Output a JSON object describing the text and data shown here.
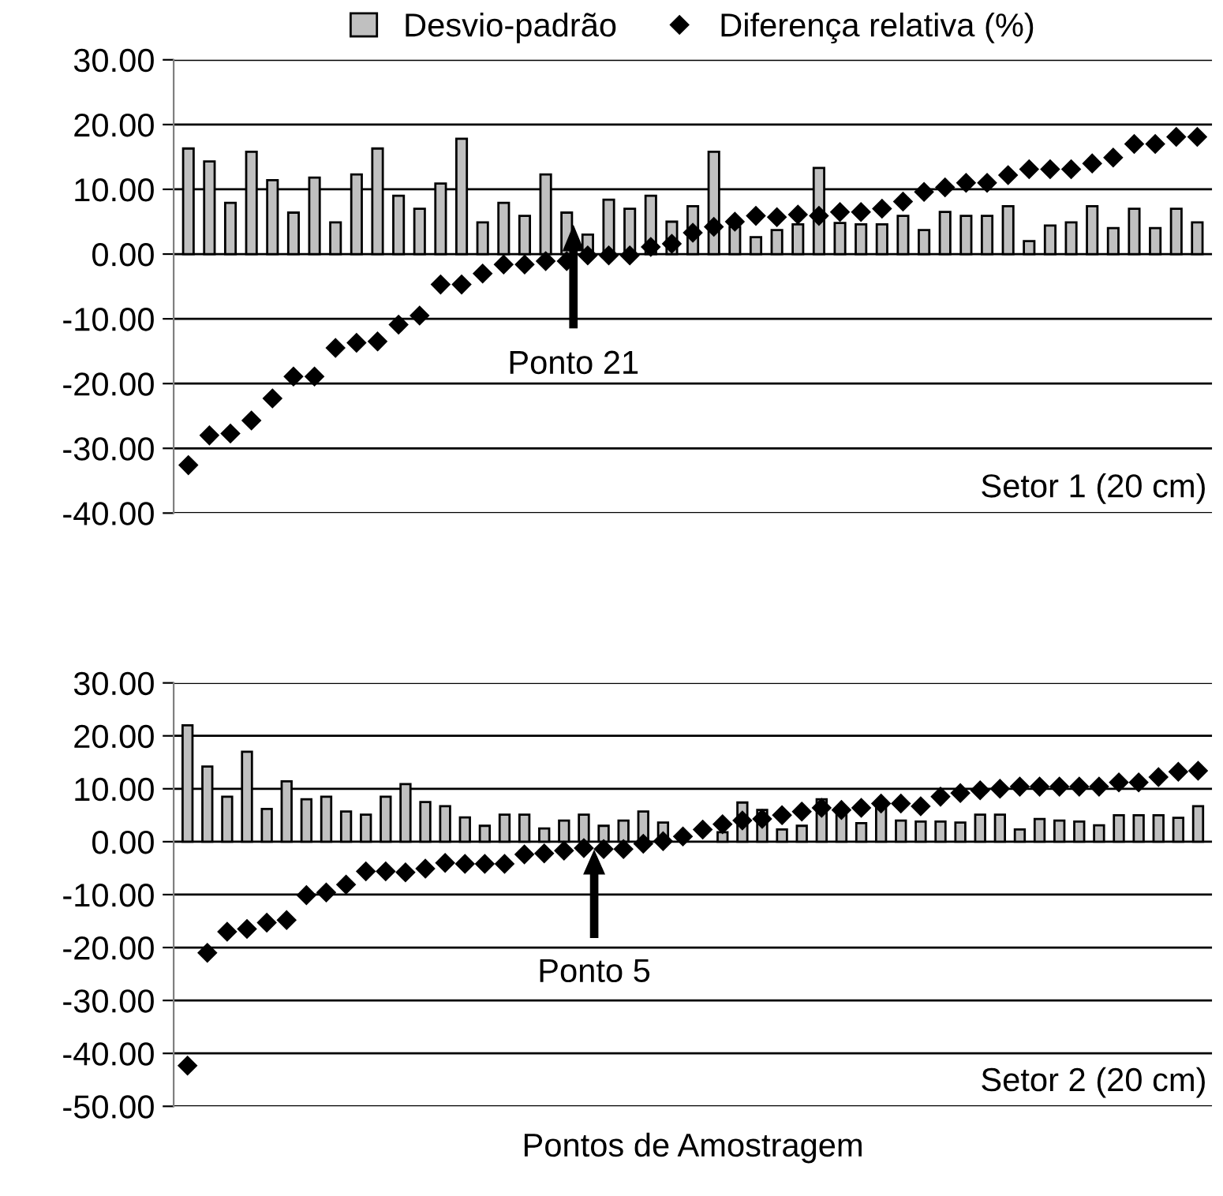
{
  "chart_data": [
    {
      "type": "bar",
      "categories": [
        null,
        null,
        null,
        null,
        null,
        null,
        null,
        null,
        null,
        null,
        null,
        null,
        null,
        null,
        null,
        null,
        null,
        null,
        null,
        null,
        null,
        null,
        null,
        null,
        null,
        null,
        null,
        null,
        null,
        null,
        null,
        null,
        null,
        null,
        null,
        null,
        null,
        null,
        null,
        null,
        null,
        null,
        null,
        null,
        null,
        null,
        null,
        null,
        null
      ],
      "series": [
        {
          "name": "Desvio-padrão",
          "color": "#c0c0c0",
          "values": [
            16.3,
            14.3,
            7.9,
            15.8,
            11.4,
            6.4,
            11.8,
            4.9,
            12.3,
            16.3,
            9.0,
            7.0,
            10.9,
            17.8,
            4.9,
            7.9,
            5.9,
            12.3,
            6.4,
            3.0,
            8.4,
            7.0,
            9.0,
            5.0,
            7.4,
            15.8,
            4.2,
            2.6,
            3.7,
            4.6,
            13.3,
            4.8,
            4.6,
            4.6,
            5.9,
            3.7,
            6.5,
            5.9,
            5.9,
            7.4,
            2.0,
            4.4,
            4.9,
            7.4,
            4.0,
            7.0,
            4.0,
            7.0,
            4.9
          ]
        },
        {
          "name": "Diferença relativa (%)",
          "type": "scatter",
          "color": "#000000",
          "marker": "diamond",
          "values": [
            -32.6,
            -28.0,
            -27.7,
            -25.7,
            -22.3,
            -18.9,
            -18.9,
            -14.5,
            -13.7,
            -13.5,
            -10.9,
            -9.5,
            -4.7,
            -4.7,
            -3.0,
            -1.6,
            -1.6,
            -1.1,
            -1.1,
            -0.2,
            -0.2,
            -0.2,
            1.1,
            1.6,
            3.3,
            4.2,
            5.0,
            5.9,
            5.7,
            6.1,
            5.9,
            6.5,
            6.5,
            7.0,
            8.1,
            9.6,
            10.3,
            11.0,
            11.0,
            12.2,
            13.1,
            13.1,
            13.1,
            14.0,
            14.9,
            17.0,
            17.0,
            18.1,
            18.1
          ]
        }
      ],
      "ylim": [
        -40,
        30
      ],
      "yticks": [
        {
          "value": -40,
          "label": "-40.00"
        },
        {
          "value": -30,
          "label": "-30.00"
        },
        {
          "value": -20,
          "label": "-20.00"
        },
        {
          "value": -10,
          "label": "-10.00"
        },
        {
          "value": 0,
          "label": "0.00"
        },
        {
          "value": 10,
          "label": "10.00"
        },
        {
          "value": 20,
          "label": "20.00"
        },
        {
          "value": 30,
          "label": "30.00"
        }
      ],
      "grid": "y",
      "legend": "top",
      "tick_labels": "y",
      "annotations": [
        "Ponto 21",
        "Setor 1 (20 cm)"
      ]
    },
    {
      "type": "bar",
      "categories": [
        null,
        null,
        null,
        null,
        null,
        null,
        null,
        null,
        null,
        null,
        null,
        null,
        null,
        null,
        null,
        null,
        null,
        null,
        null,
        null,
        null,
        null,
        null,
        null,
        null,
        null,
        null,
        null,
        null,
        null,
        null,
        null,
        null,
        null,
        null,
        null,
        null,
        null,
        null,
        null,
        null,
        null,
        null,
        null,
        null,
        null,
        null,
        null,
        null,
        null,
        null,
        null
      ],
      "series": [
        {
          "color": "#c0c0c0",
          "values": [
            22.0,
            14.2,
            8.5,
            17.0,
            6.2,
            11.4,
            8.0,
            8.5,
            5.7,
            5.1,
            8.5,
            10.9,
            7.5,
            6.7,
            4.6,
            3.0,
            5.1,
            5.1,
            2.5,
            4.0,
            5.1,
            3.0,
            4.0,
            5.7,
            3.6,
            null,
            null,
            1.8,
            7.4,
            6.0,
            2.3,
            3.0,
            8.0,
            5.7,
            3.5,
            7.7,
            4.0,
            3.8,
            3.8,
            3.6,
            5.1,
            5.1,
            2.3,
            4.3,
            4.0,
            3.8,
            3.1,
            5.0,
            5.0,
            5.0,
            4.5,
            6.7
          ]
        },
        {
          "type": "scatter",
          "color": "#000000",
          "marker": "diamond",
          "values": [
            -42.3,
            -21.0,
            -17.0,
            -16.5,
            -15.3,
            -14.8,
            -10.1,
            -9.6,
            -8.1,
            -5.6,
            -5.6,
            -5.8,
            -5.1,
            -4.0,
            -4.2,
            -4.2,
            -4.2,
            -2.4,
            -2.2,
            -1.7,
            -1.2,
            -1.4,
            -1.4,
            -0.4,
            0.1,
            1.0,
            2.3,
            3.3,
            4.0,
            4.3,
            5.0,
            5.7,
            6.4,
            6.0,
            6.4,
            7.2,
            7.2,
            6.7,
            8.5,
            9.2,
            9.7,
            10.0,
            10.4,
            10.4,
            10.4,
            10.4,
            10.4,
            11.2,
            11.2,
            12.2,
            13.2,
            13.4
          ]
        }
      ],
      "ylim": [
        -50,
        30
      ],
      "yticks": [
        {
          "value": -50,
          "label": "-50.00"
        },
        {
          "value": -40,
          "label": "-40.00"
        },
        {
          "value": -30,
          "label": "-30.00"
        },
        {
          "value": -20,
          "label": "-20.00"
        },
        {
          "value": -10,
          "label": "-10.00"
        },
        {
          "value": 0,
          "label": "0.00"
        },
        {
          "value": 10,
          "label": "10.00"
        },
        {
          "value": 20,
          "label": "20.00"
        },
        {
          "value": 30,
          "label": "30.00"
        }
      ],
      "grid": "y",
      "tick_labels": "y",
      "xlabel": "Pontos de Amostragem",
      "annotations": [
        "Ponto 5",
        "Setor 2 (20 cm)"
      ]
    }
  ]
}
